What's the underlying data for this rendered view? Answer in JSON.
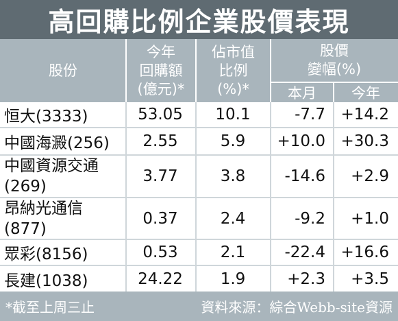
{
  "title": "高回購比例企業股價表現",
  "header": {
    "stock": "股份",
    "buyback": [
      "今年",
      "回購額",
      "(億元)*"
    ],
    "mktcap": [
      "佔市值",
      "比例",
      "(%)*"
    ],
    "change": [
      "股價",
      "變幅(%)"
    ],
    "month": "本月",
    "year": "今年"
  },
  "rows": [
    {
      "name": [
        "恒大(3333)"
      ],
      "buyback": "53.05",
      "mktcap": "10.1",
      "month": "-7.7",
      "year": "+14.2"
    },
    {
      "name": [
        "中國海澱(256)"
      ],
      "buyback": "2.55",
      "mktcap": "5.9",
      "month": "+10.0",
      "year": "+30.3"
    },
    {
      "name": [
        "中國資源交通",
        "(269)"
      ],
      "buyback": "3.77",
      "mktcap": "3.8",
      "month": "-14.6",
      "year": "+2.9"
    },
    {
      "name": [
        "昂納光通信",
        "(877)"
      ],
      "buyback": "0.37",
      "mktcap": "2.4",
      "month": "-9.2",
      "year": "+1.0"
    },
    {
      "name": [
        "眾彩(8156)"
      ],
      "buyback": "0.53",
      "mktcap": "2.1",
      "month": "-22.4",
      "year": "+16.6"
    },
    {
      "name": [
        "長建(1038)"
      ],
      "buyback": "24.22",
      "mktcap": "1.9",
      "month": "+2.3",
      "year": "+3.5"
    }
  ],
  "footer": {
    "note": "*截至上周三止",
    "source": "資料來源：綜合Webb-site資源"
  }
}
